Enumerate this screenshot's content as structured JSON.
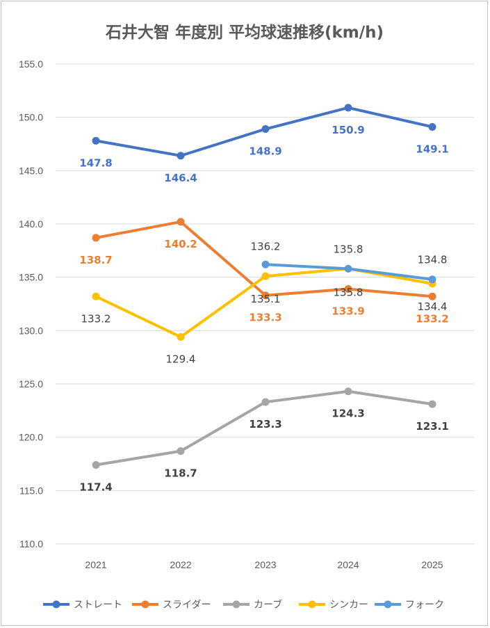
{
  "chart_data": {
    "type": "line",
    "title": "石井大智 年度別 平均球速推移(km/h)",
    "categories": [
      "2021",
      "2022",
      "2023",
      "2024",
      "2025"
    ],
    "ylim": [
      110.0,
      155.0
    ],
    "y_ticks": [
      "110.0",
      "115.0",
      "120.0",
      "125.0",
      "130.0",
      "135.0",
      "140.0",
      "145.0",
      "150.0",
      "155.0"
    ],
    "grid": "horizontal",
    "legend_position": "bottom",
    "series": [
      {
        "name": "ストレート",
        "color": "#4472C4",
        "label_color": "#4472C4",
        "label_weight": "bold",
        "values": [
          147.8,
          146.4,
          148.9,
          150.9,
          149.1
        ],
        "labels": [
          "147.8",
          "146.4",
          "148.9",
          "150.9",
          "149.1"
        ]
      },
      {
        "name": "スライダー",
        "color": "#ED7D31",
        "label_color": "#ED7D31",
        "label_weight": "bold",
        "values": [
          138.7,
          140.2,
          133.3,
          133.9,
          133.2
        ],
        "labels": [
          "138.7",
          "140.2",
          "133.3",
          "133.9",
          "133.2"
        ]
      },
      {
        "name": "カーブ",
        "color": "#A5A5A5",
        "label_color": "#404040",
        "label_weight": "bold",
        "values": [
          117.4,
          118.7,
          123.3,
          124.3,
          123.1
        ],
        "labels": [
          "117.4",
          "118.7",
          "123.3",
          "124.3",
          "123.1"
        ]
      },
      {
        "name": "シンカー",
        "color": "#FFC000",
        "label_color": "#404040",
        "label_weight": "normal",
        "values": [
          133.2,
          129.4,
          135.1,
          135.8,
          134.4
        ],
        "labels": [
          "133.2",
          "129.4",
          "135.1",
          "135.8",
          "134.4"
        ]
      },
      {
        "name": "フォーク",
        "color": "#5B9BD5",
        "label_color": "#404040",
        "label_weight": "normal",
        "values": [
          null,
          null,
          136.2,
          135.8,
          134.8
        ],
        "labels": [
          null,
          null,
          "136.2",
          "135.8",
          "134.8"
        ]
      }
    ]
  }
}
